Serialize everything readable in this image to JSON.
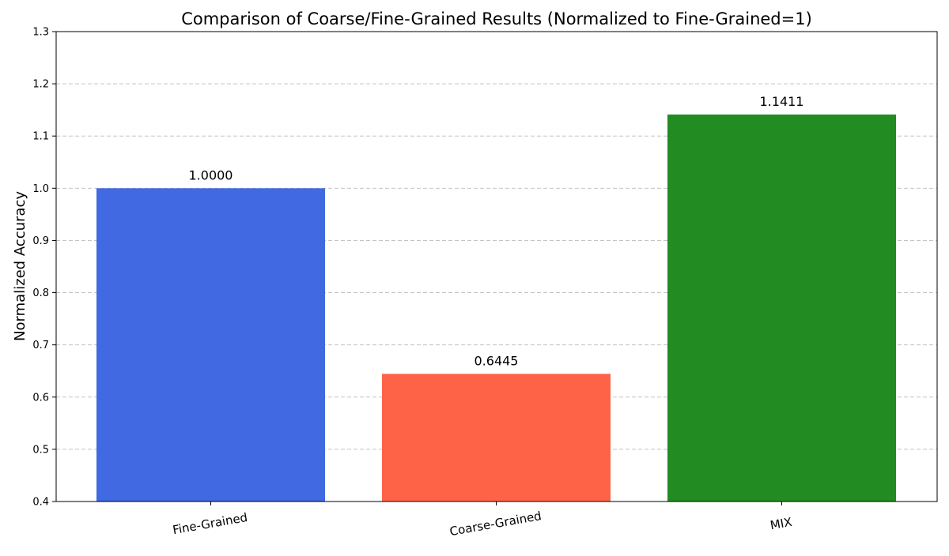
{
  "chart_data": {
    "type": "bar",
    "title": "Comparison of Coarse/Fine-Grained Results (Normalized to Fine-Grained=1)",
    "xlabel": "",
    "ylabel": "Normalized Accuracy",
    "categories": [
      "Fine-Grained",
      "Coarse-Grained",
      "MIX"
    ],
    "values": [
      1.0,
      0.6445,
      1.1411
    ],
    "value_labels": [
      "1.0000",
      "0.6445",
      "1.1411"
    ],
    "bar_colors": [
      "#4169e1",
      "#ff6347",
      "#228b22"
    ],
    "ylim": [
      0.4,
      1.3
    ],
    "yticks": [
      0.4,
      0.5,
      0.6,
      0.7,
      0.8,
      0.9,
      1.0,
      1.1,
      1.2,
      1.3
    ],
    "ytick_labels": [
      "0.4",
      "0.5",
      "0.6",
      "0.7",
      "0.8",
      "0.9",
      "1.0",
      "1.1",
      "1.2",
      "1.3"
    ],
    "grid": "y-dashed",
    "legend": "none"
  }
}
